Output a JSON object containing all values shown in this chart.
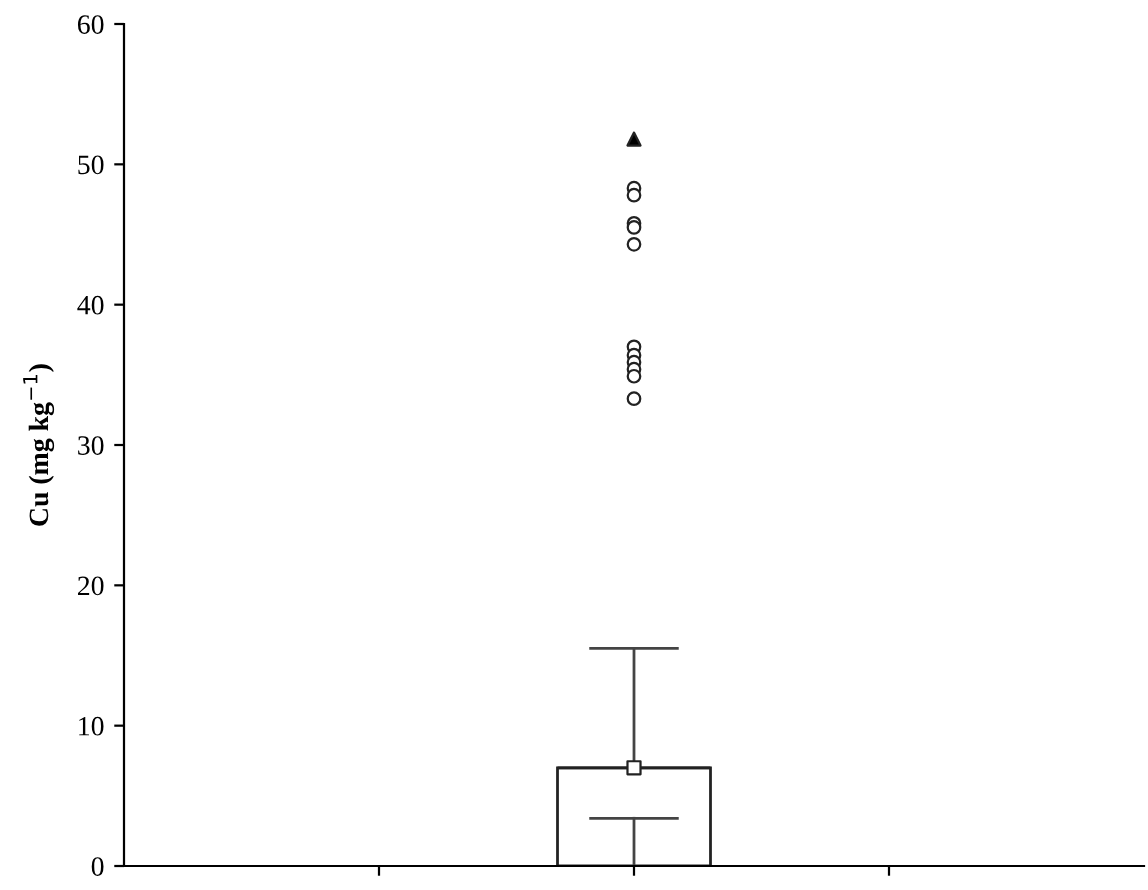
{
  "chart_data": {
    "type": "box",
    "ylabel": "Cu (mg kg$^{−1}$)",
    "categories": [
      null
    ],
    "ylim": [
      0,
      60
    ],
    "yticks": [
      0,
      10,
      20,
      30,
      40,
      50,
      60
    ],
    "tick_labels": "y",
    "grid": false,
    "legend": false,
    "series": [
      {
        "color": "#ffffff",
        "boxes": [
          {
            "low": 3.4,
            "q1": 0,
            "median": 7.0,
            "q3": 7.0,
            "high": 15.5,
            "outliers": [
              48.3,
              47.8,
              45.8,
              45.5,
              44.3,
              37.0,
              36.4,
              35.9,
              35.4,
              34.9,
              33.3
            ]
          }
        ]
      },
      {
        "type": "scatter",
        "marker": "square",
        "color": "#ffffff",
        "x": [
          null
        ],
        "values": [
          7.0
        ]
      },
      {
        "type": "scatter",
        "marker": "triangle",
        "color": "#000000",
        "x": [
          null
        ],
        "values": [
          51.8
        ]
      }
    ]
  }
}
